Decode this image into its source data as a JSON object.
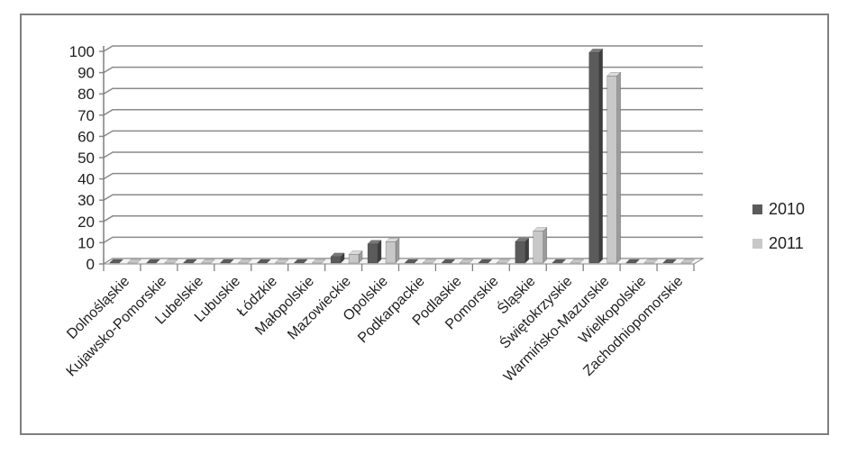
{
  "chart_data": {
    "type": "bar",
    "style": "3d-clustered",
    "title": "",
    "xlabel": "",
    "ylabel": "",
    "categories": [
      "Dolnośląskie",
      "Kujawsko-Pomorskie",
      "Lubelskie",
      "Lubuskie",
      "Łódzkie",
      "Małopolskie",
      "Mazowieckie",
      "Opolskie",
      "Podkarpackie",
      "Podlaskie",
      "Pomorskie",
      "Śląskie",
      "Świętokrzyskie",
      "Warmińsko-Mazurskie",
      "Wielkopolskie",
      "Zachodniopomorskie"
    ],
    "series": [
      {
        "name": "2010",
        "color": "#5b5b5b",
        "color_top": "#787878",
        "color_side": "#3e3e3e",
        "values": [
          0,
          0,
          0,
          0,
          0,
          0,
          3,
          9,
          0,
          0,
          0,
          10,
          0,
          99,
          0,
          0
        ]
      },
      {
        "name": "2011",
        "color": "#c8c8c8",
        "color_top": "#dadada",
        "color_side": "#9c9c9c",
        "values": [
          0,
          0,
          0,
          0,
          0,
          0,
          4,
          10,
          0,
          0,
          0,
          15,
          0,
          88,
          0,
          0
        ]
      }
    ],
    "ylim": [
      0,
      100
    ],
    "ytick_step": 10,
    "yticks": [
      0,
      10,
      20,
      30,
      40,
      50,
      60,
      70,
      80,
      90,
      100
    ],
    "grid": true,
    "legend_position": "right",
    "colors": {
      "gridline": "#8a8a8a",
      "axis": "#7f7f7f",
      "floor_fill": "#f4f4f4",
      "frame_border": "#7f7f7f",
      "text": "#1f1f1f"
    }
  }
}
